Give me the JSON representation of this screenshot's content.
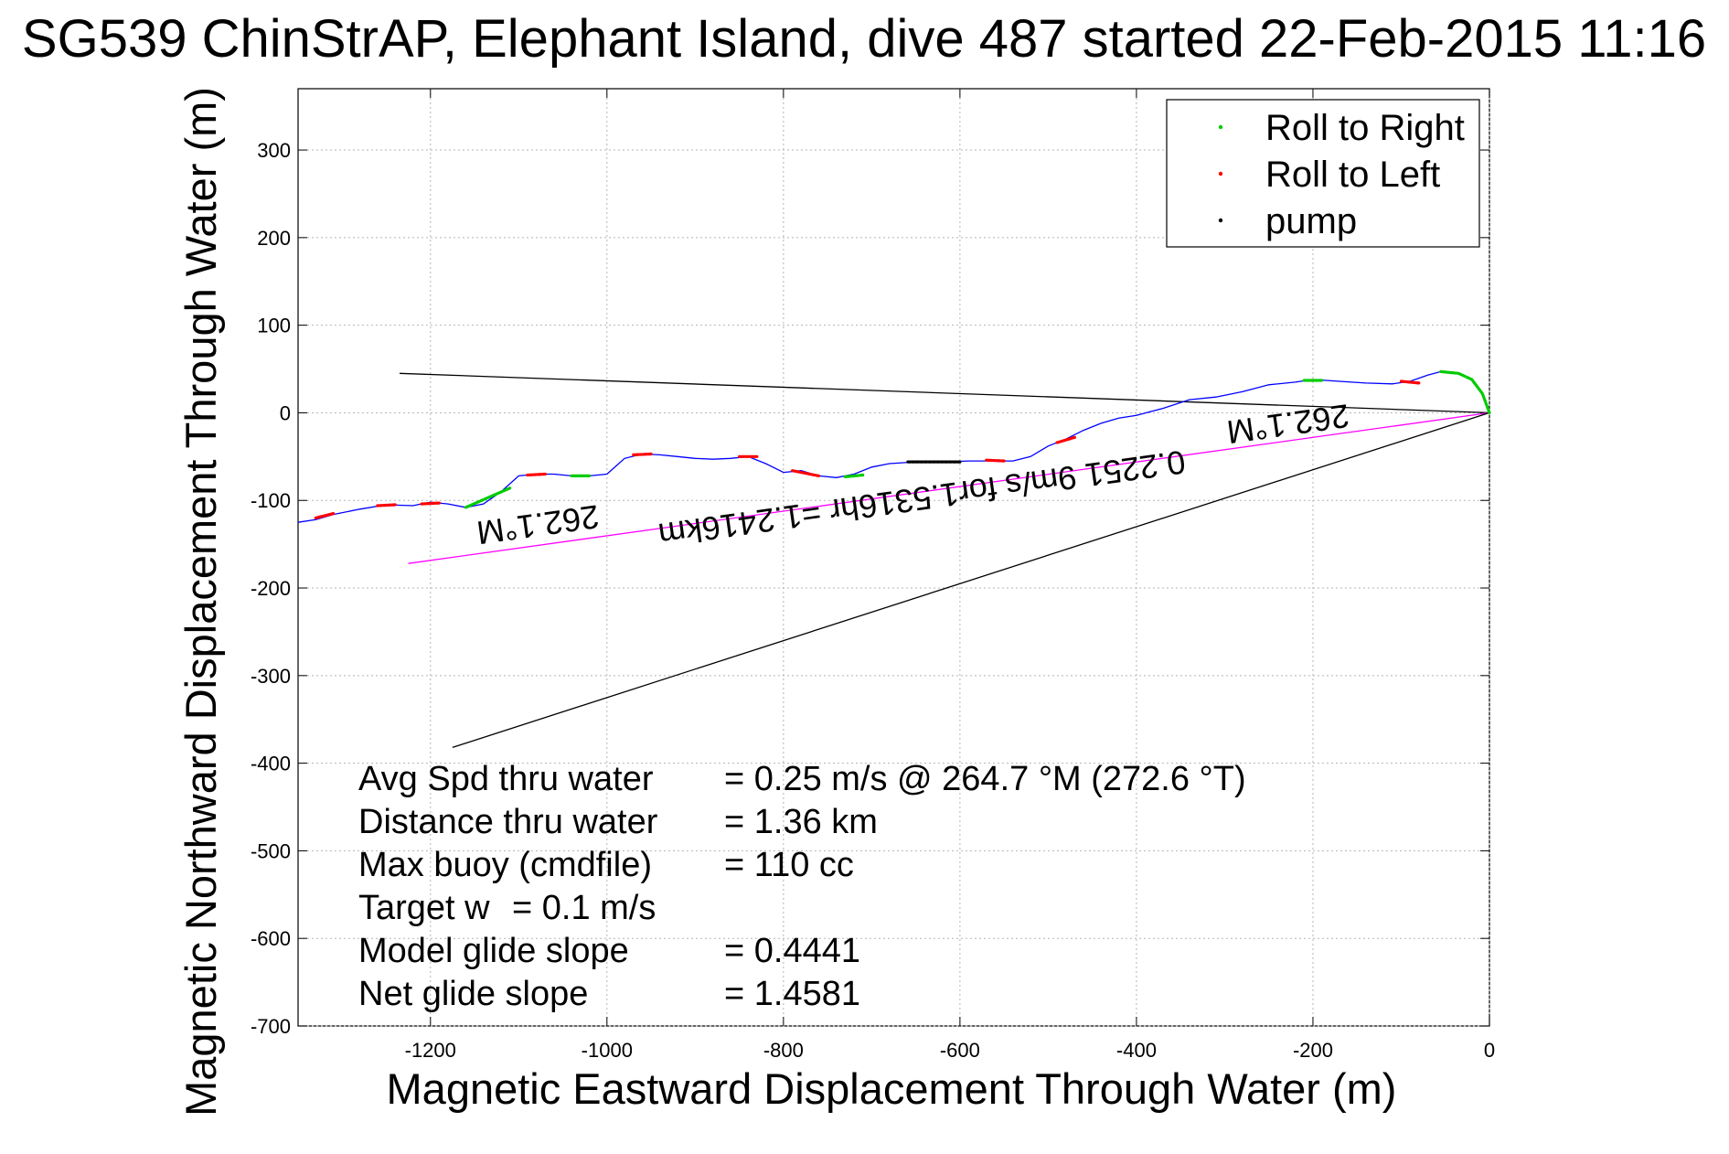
{
  "chart_data": {
    "type": "line",
    "title": "SG539 ChinStrAP, Elephant Island, dive 487 started 22-Feb-2015 11:16",
    "xlabel": "Magnetic Eastward Displacement Through Water (m)",
    "ylabel": "Magnetic Northward Displacement Through Water (m)",
    "xlim": [
      -1350,
      0
    ],
    "ylim": [
      -700,
      370
    ],
    "xticks": [
      -1200,
      -1000,
      -800,
      -600,
      -400,
      -200,
      0
    ],
    "yticks": [
      300,
      200,
      100,
      0,
      -100,
      -200,
      -300,
      -400,
      -500,
      -600,
      -700
    ],
    "grid": true,
    "legend_position": "top-right",
    "legend": [
      {
        "label": "Roll to Right",
        "color": "#00cc00"
      },
      {
        "label": "Roll to Left",
        "color": "#ff0000"
      },
      {
        "label": "pump",
        "color": "#000000"
      }
    ],
    "track": {
      "color": "#0000ff",
      "x": [
        0,
        -8,
        -20,
        -35,
        -55,
        -70,
        -90,
        -110,
        -140,
        -170,
        -200,
        -220,
        -250,
        -280,
        -310,
        -340,
        -370,
        -400,
        -420,
        -440,
        -460,
        -480,
        -500,
        -520,
        -540,
        -560,
        -590,
        -620,
        -650,
        -680,
        -700,
        -720,
        -740,
        -760,
        -780,
        -800,
        -820,
        -840,
        -860,
        -880,
        -900,
        -920,
        -940,
        -960,
        -980,
        -1000,
        -1020,
        -1040,
        -1060,
        -1080,
        -1100,
        -1120,
        -1140,
        -1160,
        -1180,
        -1200,
        -1220,
        -1250,
        -1280,
        -1310,
        -1330,
        -1350
      ],
      "y": [
        0,
        22,
        38,
        45,
        47,
        43,
        36,
        33,
        34,
        36,
        38,
        35,
        32,
        24,
        18,
        15,
        5,
        -3,
        -6,
        -12,
        -20,
        -30,
        -38,
        -50,
        -55,
        -55,
        -55,
        -56,
        -56,
        -58,
        -62,
        -70,
        -74,
        -72,
        -66,
        -68,
        -58,
        -50,
        -52,
        -53,
        -52,
        -50,
        -48,
        -47,
        -52,
        -70,
        -72,
        -72,
        -70,
        -70,
        -72,
        -90,
        -104,
        -108,
        -104,
        -102,
        -106,
        -105,
        -110,
        -116,
        -122,
        -125
      ]
    },
    "roll_right_segments": [
      {
        "x": [
          0,
          -8,
          -20,
          -35,
          -55
        ],
        "y": [
          0,
          22,
          38,
          45,
          47
        ]
      },
      {
        "x": [
          -190,
          -210
        ],
        "y": [
          37,
          37
        ]
      },
      {
        "x": [
          -710,
          -730
        ],
        "y": [
          -71,
          -73
        ]
      },
      {
        "x": [
          -1020,
          -1040
        ],
        "y": [
          -72,
          -72
        ]
      },
      {
        "x": [
          -1110,
          -1160
        ],
        "y": [
          -86,
          -108
        ]
      }
    ],
    "roll_left_segments": [
      {
        "x": [
          -80,
          -100
        ],
        "y": [
          34,
          36
        ]
      },
      {
        "x": [
          -470,
          -490
        ],
        "y": [
          -28,
          -34
        ]
      },
      {
        "x": [
          -550,
          -570
        ],
        "y": [
          -55,
          -54
        ]
      },
      {
        "x": [
          -760,
          -790
        ],
        "y": [
          -72,
          -66
        ]
      },
      {
        "x": [
          -830,
          -850
        ],
        "y": [
          -50,
          -50
        ]
      },
      {
        "x": [
          -950,
          -970
        ],
        "y": [
          -47,
          -48
        ]
      },
      {
        "x": [
          -1070,
          -1090
        ],
        "y": [
          -70,
          -71
        ]
      },
      {
        "x": [
          -1190,
          -1210
        ],
        "y": [
          -103,
          -104
        ]
      },
      {
        "x": [
          -1240,
          -1260
        ],
        "y": [
          -105,
          -106
        ]
      },
      {
        "x": [
          -1310,
          -1330
        ],
        "y": [
          -115,
          -120
        ]
      }
    ],
    "pump_segments": [
      {
        "x": [
          -600,
          -660
        ],
        "y": [
          -56,
          -56
        ]
      }
    ],
    "reference_lines": [
      {
        "color": "#000000",
        "x": [
          0,
          -1235
        ],
        "y": [
          0,
          45
        ]
      },
      {
        "color": "#ff00ff",
        "x": [
          0,
          -1225
        ],
        "y": [
          0,
          -172
        ]
      },
      {
        "color": "#000000",
        "x": [
          0,
          -1175
        ],
        "y": [
          0,
          -382
        ]
      }
    ],
    "annotations": [
      {
        "text": "262.1°M",
        "x": -1080,
        "y": -115
      },
      {
        "text": "0.2251 9m/s for1.5316hr =1.2416km",
        "x": -645,
        "y": -85
      },
      {
        "text": "262.1°M",
        "x": -230,
        "y": 0
      }
    ],
    "stats": [
      {
        "label": "Avg Spd thru water",
        "value": "=  0.25 m/s @ 264.7 °M (272.6 °T)"
      },
      {
        "label": "Distance thru water",
        "value": "=  1.36 km"
      },
      {
        "label": "Max buoy (cmdfile)",
        "value": "= 110 cc"
      },
      {
        "label": "Target w",
        "value": "= 0.1 m/s"
      },
      {
        "label": "Model glide slope",
        "value": "= 0.4441"
      },
      {
        "label": "Net glide slope",
        "value": "= 1.4581"
      }
    ]
  }
}
